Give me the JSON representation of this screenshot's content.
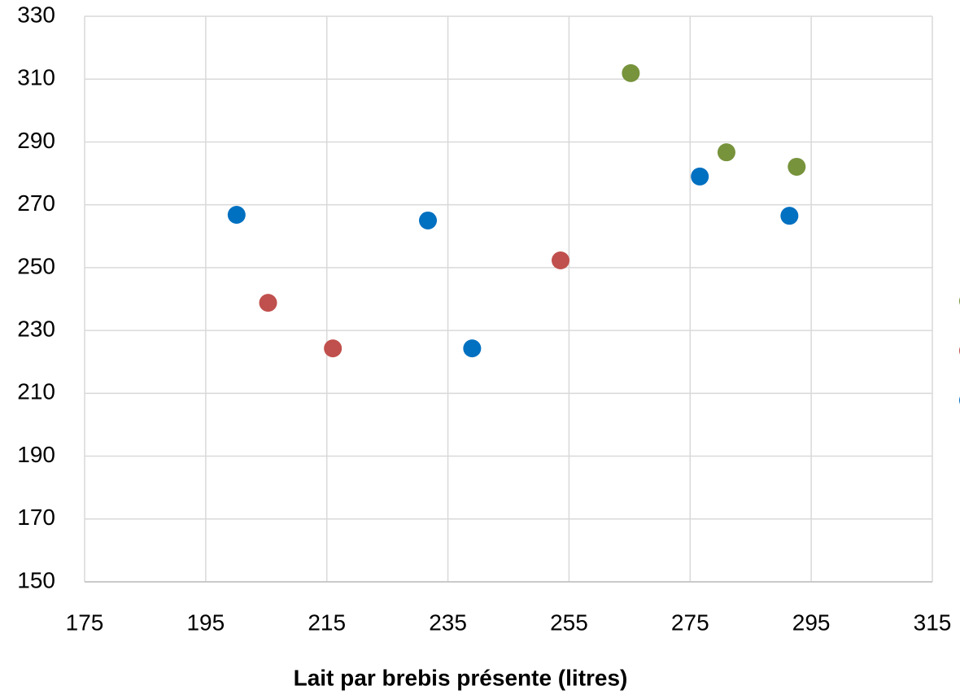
{
  "chart_data": {
    "type": "scatter",
    "x_label": "Lait par brebis présente (litres)",
    "xlim": [
      175,
      315
    ],
    "xticks": [
      175,
      195,
      215,
      235,
      255,
      275,
      295,
      315
    ],
    "ylim": [
      150,
      330
    ],
    "yticks": [
      150,
      170,
      190,
      210,
      230,
      250,
      270,
      290,
      310,
      330
    ],
    "grid": true,
    "series": [
      {
        "color": "#77933c",
        "x": [
          265.2,
          281.0,
          292.6
        ],
        "values": [
          311.9,
          286.7,
          282.1
        ]
      },
      {
        "color": "#c0504d",
        "x": [
          205.3,
          216.0,
          253.6
        ],
        "values": [
          238.8,
          224.3,
          252.3
        ]
      },
      {
        "color": "#0070c0",
        "x": [
          200.1,
          231.7,
          239.0,
          276.6,
          291.4
        ],
        "values": [
          266.8,
          265.0,
          224.3,
          279.0,
          266.5
        ]
      }
    ]
  }
}
